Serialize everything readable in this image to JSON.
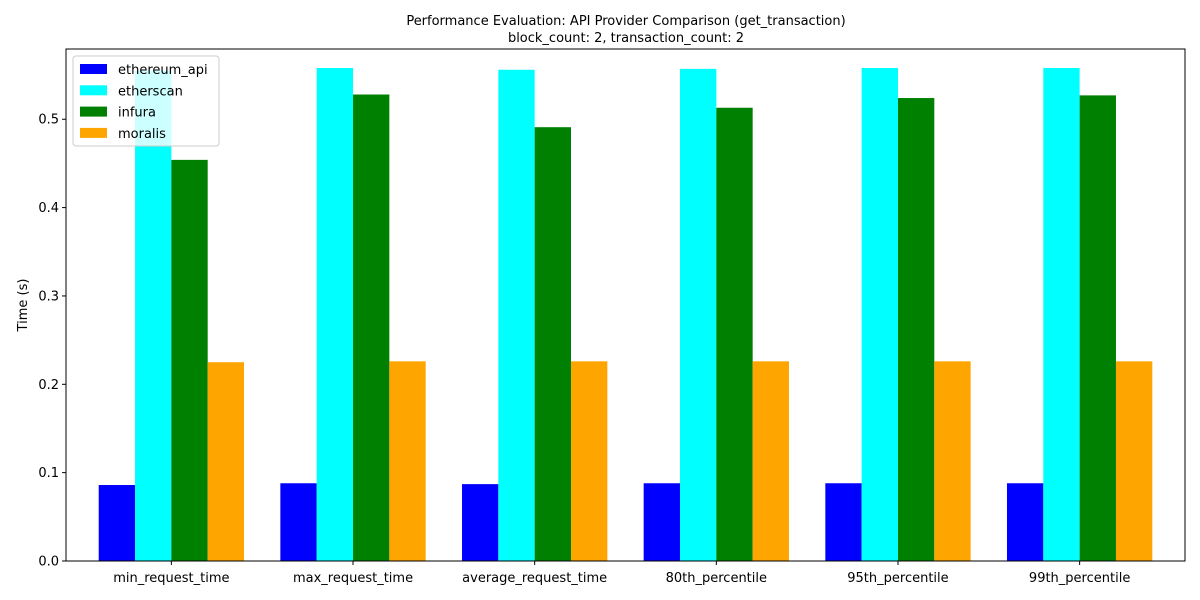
{
  "title_lines": [
    "Performance Evaluation: API Provider Comparison (get_transaction)",
    "block_count: 2, transaction_count: 2"
  ],
  "chart_data": {
    "type": "bar",
    "title": "Performance Evaluation: API Provider Comparison (get_transaction)",
    "subtitle": "block_count: 2, transaction_count: 2",
    "xlabel": "",
    "ylabel": "Time (s)",
    "categories": [
      "min_request_time",
      "max_request_time",
      "average_request_time",
      "80th_percentile",
      "95th_percentile",
      "99th_percentile"
    ],
    "series": [
      {
        "name": "ethereum_api",
        "color": "#0000ff",
        "values": [
          0.086,
          0.088,
          0.087,
          0.088,
          0.088,
          0.088
        ]
      },
      {
        "name": "etherscan",
        "color": "#00ffff",
        "values": [
          0.555,
          0.558,
          0.556,
          0.557,
          0.558,
          0.558
        ]
      },
      {
        "name": "infura",
        "color": "#008000",
        "values": [
          0.454,
          0.528,
          0.491,
          0.513,
          0.524,
          0.527
        ]
      },
      {
        "name": "moralis",
        "color": "#ffa500",
        "values": [
          0.225,
          0.226,
          0.226,
          0.226,
          0.226,
          0.226
        ]
      }
    ],
    "ylim": [
      0,
      0.5795
    ],
    "yticks": [
      0.0,
      0.1,
      0.2,
      0.3,
      0.4,
      0.5
    ],
    "ytick_labels": [
      "0.0",
      "0.1",
      "0.2",
      "0.3",
      "0.4",
      "0.5"
    ],
    "grid": false,
    "legend_position": "top-left"
  }
}
